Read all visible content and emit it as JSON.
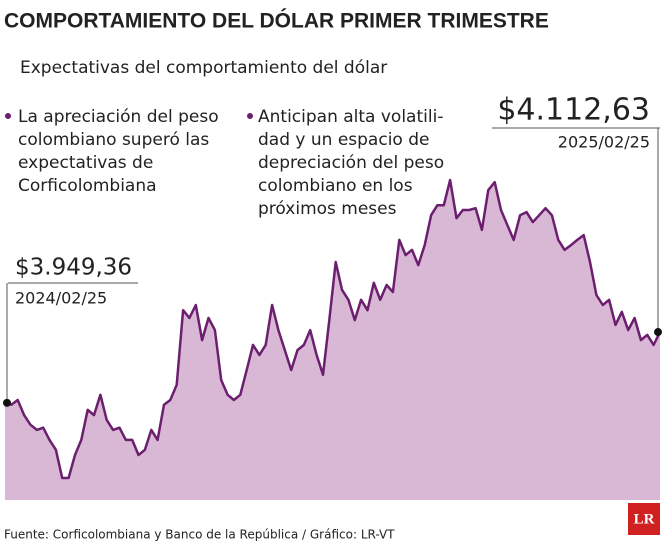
{
  "chart_data": {
    "type": "area",
    "title": "COMPORTAMIENTO DEL DÓLAR PRIMER TRIMESTRE",
    "subtitle": "Expectativas del comportamiento del dólar",
    "notes": [
      [
        "La apreciación del peso",
        "colombiano superó las",
        "expectativas de",
        "Corficolombiana"
      ],
      [
        "Anticipan alta volatili-",
        "dad y un espacio de",
        "depreciación del peso",
        "colombiano en los",
        "próximos meses"
      ]
    ],
    "source": "Fuente: Corficolombiana y Banco de la República / Gráfico: LR-VT",
    "logo": "LR",
    "categories": [
      "2024/02/25",
      null,
      null,
      null,
      null,
      null,
      null,
      null,
      null,
      null,
      null,
      null,
      null,
      null,
      null,
      null,
      null,
      null,
      null,
      null,
      null,
      null,
      null,
      null,
      null,
      null,
      null,
      null,
      null,
      null,
      null,
      null,
      null,
      null,
      null,
      null,
      null,
      null,
      null,
      null,
      null,
      null,
      null,
      null,
      null,
      null,
      null,
      null,
      null,
      null,
      null,
      null,
      null,
      null,
      null,
      null,
      null,
      null,
      null,
      null,
      null,
      null,
      null,
      null,
      null,
      null,
      null,
      null,
      null,
      null,
      null,
      null,
      null,
      null,
      null,
      null,
      null,
      null,
      null,
      null,
      null,
      null,
      null,
      null,
      null,
      null,
      null,
      null,
      null,
      null,
      null,
      null,
      null,
      null,
      null,
      null,
      null,
      null,
      null,
      null,
      null,
      null,
      null,
      "2025/02/25"
    ],
    "values": [
      3949.36,
      3945,
      3956,
      3921,
      3899,
      3887,
      3892,
      3864,
      3841,
      3776,
      3776,
      3829,
      3864,
      3933,
      3921,
      3968,
      3910,
      3887,
      3892,
      3864,
      3864,
      3829,
      3841,
      3887,
      3864,
      3945,
      3956,
      3991,
      4163,
      4145,
      4175,
      4094,
      4145,
      4117,
      4002,
      3968,
      3956,
      3968,
      4025,
      4083,
      4060,
      4083,
      4175,
      4117,
      4071,
      4025,
      4071,
      4083,
      4117,
      4060,
      4014,
      4140,
      4274,
      4210,
      4187,
      4140,
      4187,
      4163,
      4226,
      4187,
      4221,
      4205,
      4325,
      4290,
      4302,
      4267,
      4313,
      4382,
      4405,
      4405,
      4463,
      4375,
      4394,
      4394,
      4398,
      4348,
      4440,
      4458,
      4394,
      4359,
      4325,
      4382,
      4389,
      4366,
      4382,
      4398,
      4382,
      4325,
      4302,
      4313,
      4325,
      4336,
      4274,
      4198,
      4175,
      4187,
      4129,
      4159,
      4117,
      4145,
      4094,
      4106,
      4083,
      4112.63
    ],
    "value_labels": [
      "$3.949,36",
      null,
      null,
      null,
      null,
      null,
      null,
      null,
      null,
      null,
      null,
      null,
      null,
      null,
      null,
      null,
      null,
      null,
      null,
      null,
      null,
      null,
      null,
      null,
      null,
      null,
      null,
      null,
      null,
      null,
      null,
      null,
      null,
      null,
      null,
      null,
      null,
      null,
      null,
      null,
      null,
      null,
      null,
      null,
      null,
      null,
      null,
      null,
      null,
      null,
      null,
      null,
      null,
      null,
      null,
      null,
      null,
      null,
      null,
      null,
      null,
      null,
      null,
      null,
      null,
      null,
      null,
      null,
      null,
      null,
      null,
      null,
      null,
      null,
      null,
      null,
      null,
      null,
      null,
      null,
      null,
      null,
      null,
      null,
      null,
      null,
      null,
      null,
      null,
      null,
      null,
      null,
      null,
      null,
      null,
      null,
      null,
      null,
      null,
      null,
      null,
      null,
      null,
      "$4.112,63"
    ],
    "color": "#6b1f6e",
    "fill": "#d9b8d6",
    "ylim": [
      3700,
      4500
    ]
  }
}
